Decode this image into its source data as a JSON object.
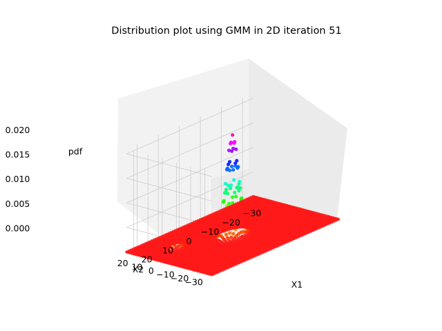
{
  "chart_data": {
    "type": "scatter",
    "projection": "3d",
    "title": "Distribution plot using GMM in 2D iteration 51",
    "xlabel": "X1",
    "ylabel": "X2",
    "zlabel": "pdf",
    "x_ticks": [
      "−30",
      "−20",
      "−10",
      "0",
      "10",
      "20"
    ],
    "y_ticks": [
      "−30",
      "−20",
      "−10",
      "0",
      "10",
      "20"
    ],
    "z_ticks": [
      "0.000",
      "0.005",
      "0.010",
      "0.015",
      "0.020"
    ],
    "xlim": [
      -35,
      25
    ],
    "ylim": [
      -35,
      25
    ],
    "zlim": [
      0,
      0.021
    ],
    "grid": true,
    "colormap": "hsv",
    "base_color": "#ff1a1a",
    "pane_colors": {
      "left": "#f2f2f2",
      "right": "#ebebeb",
      "floor": "#e6e6e6"
    },
    "components": [
      {
        "center": [
          -5,
          -5
        ],
        "std": 2.5,
        "peak": 0.0205
      },
      {
        "center": [
          13,
          8
        ],
        "std": 1.8,
        "peak": 0.003
      }
    ]
  }
}
